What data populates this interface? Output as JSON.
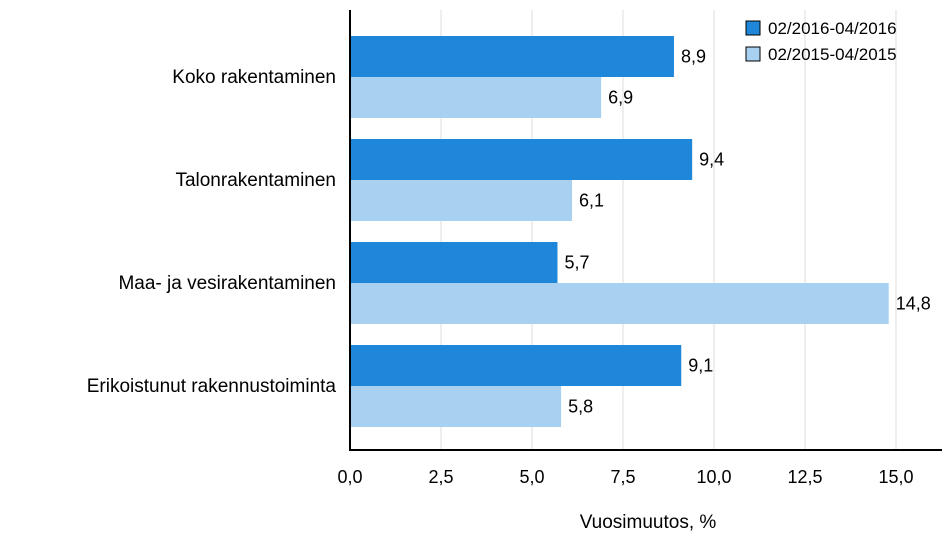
{
  "chart_data": {
    "type": "bar",
    "orientation": "horizontal",
    "categories": [
      "Koko rakentaminen",
      "Talonrakentaminen",
      "Maa- ja vesirakentaminen",
      "Erikoistunut rakennustoiminta"
    ],
    "series": [
      {
        "name": "02/2016-04/2016",
        "color": "#1e87d9",
        "values": [
          8.9,
          9.4,
          5.7,
          9.1
        ]
      },
      {
        "name": "02/2015-04/2015",
        "color": "#a8d1f1",
        "values": [
          6.9,
          6.1,
          14.8,
          5.8
        ]
      }
    ],
    "value_labels": [
      [
        "8,9",
        "9,4",
        "5,7",
        "9,1"
      ],
      [
        "6,9",
        "6,1",
        "14,8",
        "5,8"
      ]
    ],
    "xlabel": "Vuosimuutos, %",
    "xlim": [
      0,
      16
    ],
    "xticks": [
      0,
      2.5,
      5,
      7.5,
      10,
      12.5,
      15
    ],
    "xtick_labels": [
      "0,0",
      "2,5",
      "5,0",
      "7,5",
      "10,0",
      "12,5",
      "15,0"
    ],
    "grid": "vertical",
    "legend_position": "top-right"
  }
}
